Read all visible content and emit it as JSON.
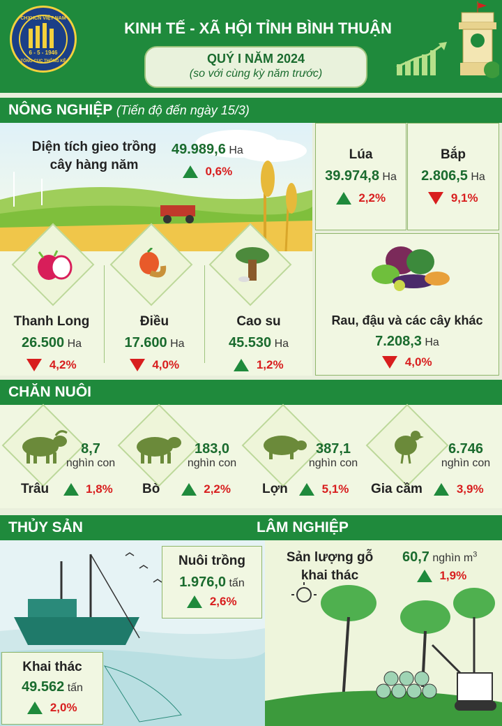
{
  "header": {
    "title": "KINH TẾ - XÃ HỘI TỈNH BÌNH THUẬN",
    "quarter": "QUÝ I NĂM 2024",
    "subtitle": "(so với cùng kỳ năm trước)",
    "logo_text_top": "CHXHCN VIỆT NAM",
    "logo_text_date": "6 - 5 - 1946",
    "logo_text_bottom": "TỔNG CỤC THỐNG KÊ"
  },
  "agriculture": {
    "section_title": "NÔNG NGHIỆP",
    "section_note": "(Tiến độ đến ngày 15/3)",
    "planted_area": {
      "label": "Diện tích gieo trồng cây hàng năm",
      "value": "49.989,6",
      "unit": "Ha",
      "change": "0,6%",
      "direction": "up"
    },
    "rice": {
      "label": "Lúa",
      "value": "39.974,8",
      "unit": "Ha",
      "change": "2,2%",
      "direction": "up"
    },
    "corn": {
      "label": "Bắp",
      "value": "2.806,5",
      "unit": "Ha",
      "change": "9,1%",
      "direction": "down"
    },
    "dragon_fruit": {
      "label": "Thanh Long",
      "value": "26.500",
      "unit": "Ha",
      "change": "4,2%",
      "direction": "down"
    },
    "cashew": {
      "label": "Điều",
      "value": "17.600",
      "unit": "Ha",
      "change": "4,0%",
      "direction": "down"
    },
    "rubber": {
      "label": "Cao su",
      "value": "45.530",
      "unit": "Ha",
      "change": "1,2%",
      "direction": "up"
    },
    "vegetables": {
      "label": "Rau, đậu và các cây khác",
      "value": "7.208,3",
      "unit": "Ha",
      "change": "4,0%",
      "direction": "down"
    }
  },
  "livestock": {
    "section_title": "CHĂN NUÔI",
    "items": [
      {
        "label": "Trâu",
        "value": "8,7",
        "unit": "nghìn con",
        "change": "1,8%",
        "direction": "up",
        "icon": "buffalo-icon"
      },
      {
        "label": "Bò",
        "value": "183,0",
        "unit": "nghìn con",
        "change": "2,2%",
        "direction": "up",
        "icon": "cow-icon"
      },
      {
        "label": "Lợn",
        "value": "387,1",
        "unit": "nghìn con",
        "change": "5,1%",
        "direction": "up",
        "icon": "pig-icon"
      },
      {
        "label": "Gia cầm",
        "value": "6.746",
        "unit": "nghìn con",
        "change": "3,9%",
        "direction": "up",
        "icon": "chicken-icon"
      }
    ]
  },
  "fishery": {
    "section_title": "THỦY SẢN",
    "aquaculture": {
      "label": "Nuôi trồng",
      "value": "1.976,0",
      "unit": "tấn",
      "change": "2,6%",
      "direction": "up"
    },
    "catch": {
      "label": "Khai thác",
      "value": "49.562",
      "unit": "tấn",
      "change": "2,0%",
      "direction": "up"
    }
  },
  "forestry": {
    "section_title": "LÂM NGHIỆP",
    "timber": {
      "label_line1": "Sản lượng gỗ",
      "label_line2": "khai thác",
      "value": "60,7",
      "unit": "nghìn m",
      "unit_sup": "3",
      "change": "1,9%",
      "direction": "up"
    }
  },
  "colors": {
    "primary_green": "#1f8a3c",
    "decrease_red": "#d81e1e",
    "background": "#e9efdc"
  }
}
